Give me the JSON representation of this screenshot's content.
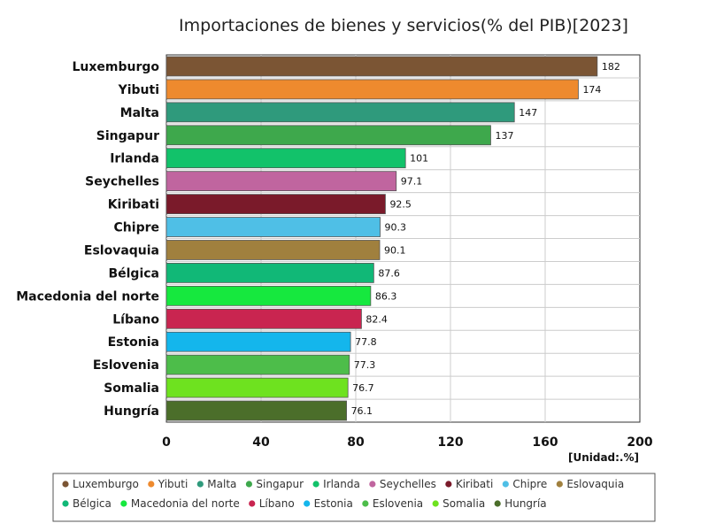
{
  "chart_data": {
    "type": "bar",
    "orientation": "horizontal",
    "title": "Importaciones de bienes y servicios(% del PIB)[2023]",
    "unit_label": "[Unidad:.%]",
    "categories": [
      "Luxemburgo",
      "Yibuti",
      "Malta",
      "Singapur",
      "Irlanda",
      "Seychelles",
      "Kiribati",
      "Chipre",
      "Eslovaquia",
      "Bélgica",
      "Macedonia del norte",
      "Líbano",
      "Estonia",
      "Eslovenia",
      "Somalia",
      "Hungría"
    ],
    "values": [
      182,
      174,
      147,
      137,
      101,
      97.1,
      92.5,
      90.3,
      90.1,
      87.6,
      86.3,
      82.4,
      77.8,
      77.3,
      76.7,
      76.1
    ],
    "value_labels": [
      "182",
      "174",
      "147",
      "137",
      "101",
      "97.1",
      "92.5",
      "90.3",
      "90.1",
      "87.6",
      "86.3",
      "82.4",
      "77.8",
      "77.3",
      "76.7",
      "76.1"
    ],
    "colors": [
      "#7b5534",
      "#ee8a2e",
      "#2f9a7c",
      "#3ea84c",
      "#12c26a",
      "#c0659f",
      "#7a1a2a",
      "#4fbfe6",
      "#a0803e",
      "#11b877",
      "#16e83e",
      "#c92550",
      "#14b6ec",
      "#4dbd4a",
      "#6ee21f",
      "#4b6e2a"
    ],
    "xlim": [
      0,
      200
    ],
    "xticks": [
      0,
      40,
      80,
      120,
      160,
      200
    ],
    "xtick_labels": [
      "0",
      "40",
      "80",
      "120",
      "160",
      "200"
    ],
    "grid": true,
    "legend_position": "bottom"
  }
}
